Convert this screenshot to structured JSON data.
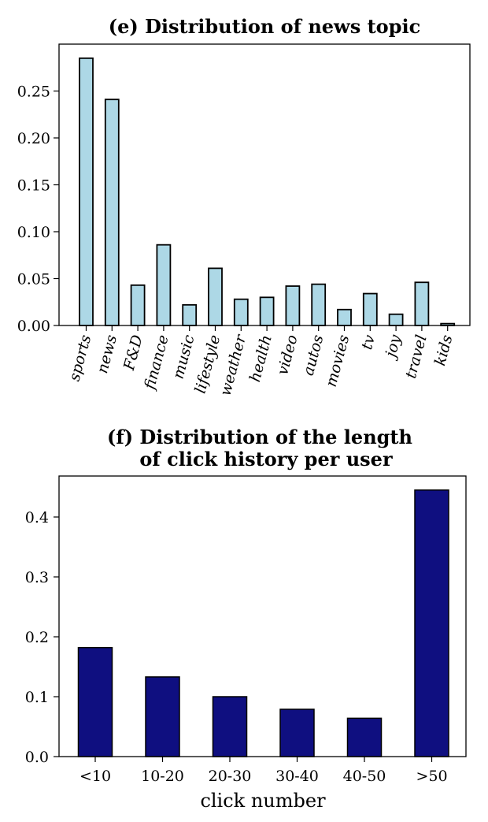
{
  "chart_data": [
    {
      "type": "bar",
      "title": "(e) Distribution of news topic",
      "xlabel": "",
      "ylabel": "",
      "categories": [
        "sports",
        "news",
        "F&D",
        "finance",
        "music",
        "lifestyle",
        "weather",
        "health",
        "video",
        "autos",
        "movies",
        "tv",
        "joy",
        "travel",
        "kids"
      ],
      "values": [
        0.285,
        0.241,
        0.043,
        0.086,
        0.022,
        0.061,
        0.028,
        0.03,
        0.042,
        0.044,
        0.017,
        0.034,
        0.012,
        0.046,
        0.002
      ],
      "yticks": [
        "0.00",
        "0.05",
        "0.10",
        "0.15",
        "0.20",
        "0.25"
      ],
      "ylim": [
        0,
        0.3
      ],
      "bar_color": "#add8e6",
      "edge_color": "#000000",
      "grid": false
    },
    {
      "type": "bar",
      "title": [
        "(f) Distribution of the length",
        "of click history per user"
      ],
      "xlabel": "click number",
      "ylabel": "",
      "categories": [
        "<10",
        "10-20",
        "20-30",
        "30-40",
        "40-50",
        ">50"
      ],
      "values": [
        0.182,
        0.133,
        0.1,
        0.079,
        0.064,
        0.445
      ],
      "yticks": [
        "0.0",
        "0.1",
        "0.2",
        "0.3",
        "0.4"
      ],
      "ylim": [
        0,
        0.468
      ],
      "bar_color": "#0f0f80",
      "edge_color": "#000000",
      "grid": false
    }
  ]
}
